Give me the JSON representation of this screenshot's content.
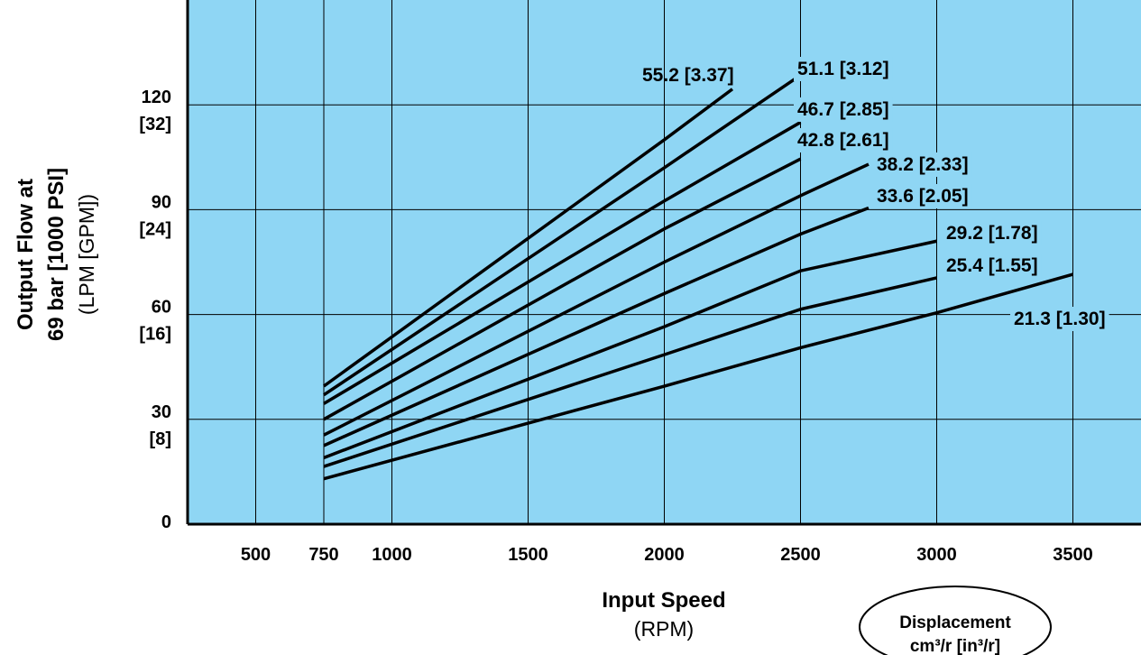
{
  "chart_data": {
    "type": "line",
    "xlabel": "Input Speed",
    "xunit": "(RPM)",
    "ylabel_line1": "Output Flow at",
    "ylabel_line2": "69 bar [1000 PSI]",
    "yunit": "(LPM [GPM])",
    "xlim": [
      250,
      3750
    ],
    "ylim": [
      0,
      150
    ],
    "x_ticks": [
      "500",
      "750",
      "1000",
      "1500",
      "2000",
      "2500",
      "3000",
      "3500"
    ],
    "x_tick_values": [
      500,
      750,
      1000,
      1500,
      2000,
      2500,
      3000,
      3500
    ],
    "y_ticks": [
      {
        "value": 0,
        "primary": "0",
        "secondary": ""
      },
      {
        "value": 30,
        "primary": "30",
        "secondary": "[8]"
      },
      {
        "value": 60,
        "primary": "60",
        "secondary": "[16]"
      },
      {
        "value": 90,
        "primary": "90",
        "secondary": "[24]"
      },
      {
        "value": 120,
        "primary": "120",
        "secondary": "[32]"
      }
    ],
    "grid": true,
    "background_color": "#8fd6f4",
    "line_color": "#000000",
    "legend_title_line1": "Displacement",
    "legend_title_line2": "cm³/r [in³/r]",
    "series": [
      {
        "name": "55.2 [3.37]",
        "points": [
          [
            750,
            39.5
          ],
          [
            2000,
            110
          ],
          [
            2250,
            124.5
          ]
        ]
      },
      {
        "name": "51.1 [3.12]",
        "points": [
          [
            750,
            37
          ],
          [
            2000,
            102
          ],
          [
            2500,
            128.5
          ]
        ]
      },
      {
        "name": "46.7 [2.85]",
        "points": [
          [
            750,
            34.5
          ],
          [
            2000,
            92.5
          ],
          [
            2500,
            115
          ]
        ]
      },
      {
        "name": "42.8 [2.61]",
        "points": [
          [
            750,
            30
          ],
          [
            2000,
            84.5
          ],
          [
            2500,
            104.5
          ]
        ]
      },
      {
        "name": "38.2 [2.33]",
        "points": [
          [
            750,
            25.5
          ],
          [
            2000,
            75
          ],
          [
            2500,
            94
          ],
          [
            2750,
            103
          ]
        ]
      },
      {
        "name": "33.6 [2.05]",
        "points": [
          [
            750,
            22.5
          ],
          [
            2000,
            66
          ],
          [
            2500,
            83
          ],
          [
            2750,
            90.5
          ]
        ]
      },
      {
        "name": "29.2 [1.78]",
        "points": [
          [
            750,
            19
          ],
          [
            2000,
            56.5
          ],
          [
            2500,
            72.5
          ],
          [
            3000,
            81
          ]
        ]
      },
      {
        "name": "25.4 [1.55]",
        "points": [
          [
            750,
            16.5
          ],
          [
            2000,
            48.5
          ],
          [
            2500,
            61.5
          ],
          [
            3000,
            70.5
          ]
        ]
      },
      {
        "name": "21.3 [1.30]",
        "points": [
          [
            750,
            13
          ],
          [
            2000,
            39.5
          ],
          [
            2500,
            50.5
          ],
          [
            3000,
            60.5
          ],
          [
            3500,
            71.5
          ]
        ]
      }
    ]
  }
}
